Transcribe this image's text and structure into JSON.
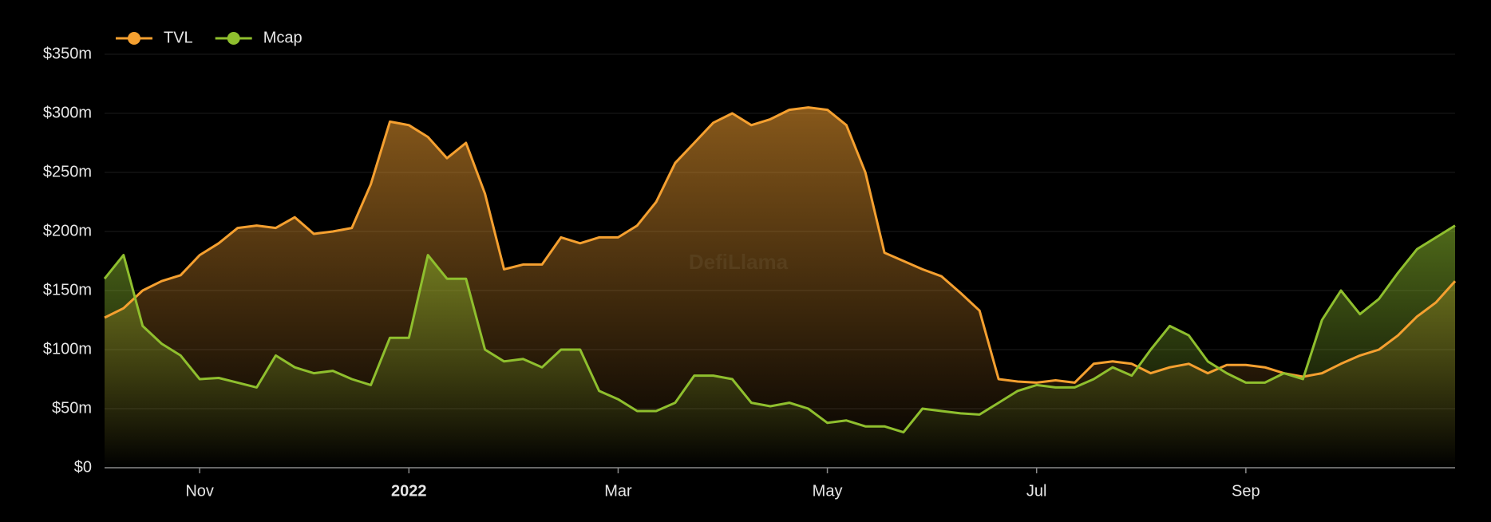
{
  "chart_data": {
    "type": "line",
    "watermark": "DefiLlama",
    "categories": [
      null,
      null,
      null,
      null,
      null,
      "Nov",
      null,
      null,
      null,
      null,
      null,
      null,
      null,
      null,
      null,
      null,
      "2022",
      null,
      null,
      null,
      null,
      null,
      null,
      null,
      null,
      null,
      null,
      "Mar",
      null,
      null,
      null,
      null,
      null,
      null,
      null,
      null,
      null,
      null,
      "May",
      null,
      null,
      null,
      null,
      null,
      null,
      null,
      null,
      null,
      null,
      "Jul",
      null,
      null,
      null,
      null,
      null,
      null,
      null,
      null,
      null,
      null,
      "Sep",
      null,
      null,
      null,
      null,
      null,
      null,
      null,
      null,
      null,
      null,
      null
    ],
    "series": [
      {
        "name": "TVL",
        "color": "#f5a030",
        "values": [
          127,
          135,
          150,
          158,
          163,
          180,
          190,
          203,
          205,
          203,
          212,
          198,
          200,
          203,
          240,
          293,
          290,
          280,
          262,
          275,
          232,
          168,
          172,
          172,
          195,
          190,
          195,
          195,
          205,
          225,
          258,
          275,
          292,
          300,
          290,
          295,
          303,
          305,
          303,
          290,
          250,
          182,
          175,
          168,
          162,
          148,
          133,
          75,
          73,
          72,
          74,
          72,
          88,
          90,
          88,
          80,
          85,
          88,
          80,
          87,
          87,
          85,
          80,
          77,
          80,
          88,
          95,
          100,
          112,
          128,
          140,
          158
        ]
      },
      {
        "name": "Mcap",
        "color": "#8fbf2e",
        "values": [
          160,
          180,
          120,
          105,
          95,
          75,
          76,
          72,
          68,
          95,
          85,
          80,
          82,
          75,
          70,
          110,
          110,
          180,
          160,
          160,
          100,
          90,
          92,
          85,
          100,
          100,
          65,
          58,
          48,
          48,
          55,
          78,
          78,
          75,
          55,
          52,
          55,
          50,
          38,
          40,
          35,
          35,
          30,
          50,
          48,
          46,
          45,
          55,
          65,
          70,
          68,
          68,
          75,
          85,
          78,
          100,
          120,
          112,
          90,
          80,
          72,
          72,
          80,
          75,
          125,
          150,
          130,
          143,
          165,
          185,
          195,
          205
        ]
      }
    ],
    "ylim": [
      0,
      350
    ],
    "yticks": [
      {
        "value": 0,
        "label": "$0"
      },
      {
        "value": 50,
        "label": "$50m"
      },
      {
        "value": 100,
        "label": "$100m"
      },
      {
        "value": 150,
        "label": "$150m"
      },
      {
        "value": 200,
        "label": "$200m"
      },
      {
        "value": 250,
        "label": "$250m"
      },
      {
        "value": 300,
        "label": "$300m"
      },
      {
        "value": 350,
        "label": "$350m"
      }
    ],
    "grid": true
  }
}
